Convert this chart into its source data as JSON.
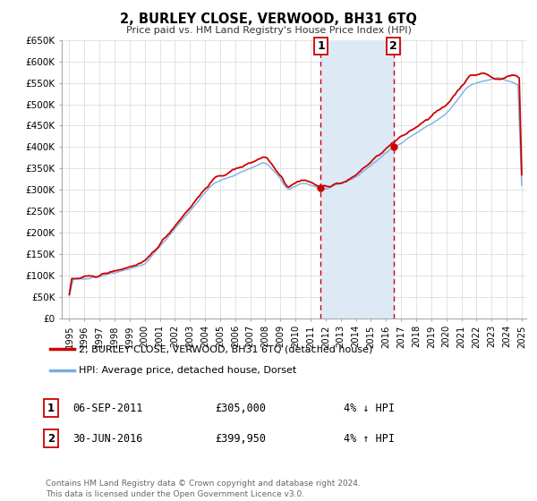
{
  "title": "2, BURLEY CLOSE, VERWOOD, BH31 6TQ",
  "subtitle": "Price paid vs. HM Land Registry's House Price Index (HPI)",
  "legend_line1": "2, BURLEY CLOSE, VERWOOD, BH31 6TQ (detached house)",
  "legend_line2": "HPI: Average price, detached house, Dorset",
  "marker1_label": "1",
  "marker1_date": "06-SEP-2011",
  "marker1_price": 305000,
  "marker1_price_str": "£305,000",
  "marker1_note": "4% ↓ HPI",
  "marker1_x": 2011.68,
  "marker2_label": "2",
  "marker2_date": "30-JUN-2016",
  "marker2_price": 399950,
  "marker2_price_str": "£399,950",
  "marker2_note": "4% ↑ HPI",
  "marker2_x": 2016.49,
  "shade_color": "#ddeaf6",
  "line1_color": "#cc0000",
  "line2_color": "#7aaddd",
  "marker_color": "#cc0000",
  "marker_box_color": "#cc0000",
  "footer": "Contains HM Land Registry data © Crown copyright and database right 2024.\nThis data is licensed under the Open Government Licence v3.0.",
  "ylim": [
    0,
    650000
  ],
  "xlim": [
    1994.5,
    2025.3
  ],
  "yticks": [
    0,
    50000,
    100000,
    150000,
    200000,
    250000,
    300000,
    350000,
    400000,
    450000,
    500000,
    550000,
    600000,
    650000
  ],
  "ytick_labels": [
    "£0",
    "£50K",
    "£100K",
    "£150K",
    "£200K",
    "£250K",
    "£300K",
    "£350K",
    "£400K",
    "£450K",
    "£500K",
    "£550K",
    "£600K",
    "£650K"
  ],
  "grid_color": "#dddddd",
  "bg_color": "#ffffff",
  "spine_color": "#aaaaaa"
}
